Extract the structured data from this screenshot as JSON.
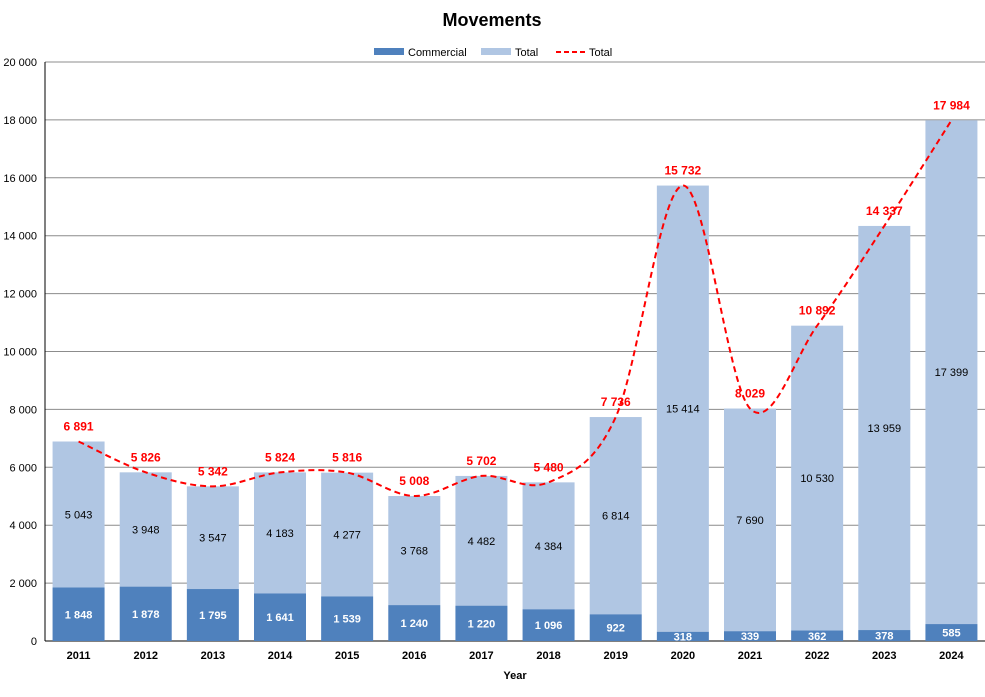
{
  "chart_data": {
    "type": "bar",
    "title": "Movements",
    "xlabel": "Year",
    "ylabel": "",
    "ylim": [
      0,
      20000
    ],
    "yticks": [
      "0",
      "2 000",
      "4 000",
      "6 000",
      "8 000",
      "10 000",
      "12 000",
      "14 000",
      "16 000",
      "18 000",
      "20 000"
    ],
    "grid": true,
    "legend_position": "top-center",
    "categories": [
      "2011",
      "2012",
      "2013",
      "2014",
      "2015",
      "2016",
      "2017",
      "2018",
      "2019",
      "2020",
      "2021",
      "2022",
      "2023",
      "2024"
    ],
    "series": [
      {
        "name": "Commercial",
        "kind": "bar",
        "color": "#4f81bd",
        "values": [
          1848,
          1878,
          1795,
          1641,
          1539,
          1240,
          1220,
          1096,
          922,
          318,
          339,
          362,
          378,
          585
        ],
        "labels": [
          "1 848",
          "1 878",
          "1 795",
          "1 641",
          "1 539",
          "1 240",
          "1 220",
          "1 096",
          "922",
          "318",
          "339",
          "362",
          "378",
          "585"
        ]
      },
      {
        "name": "Total",
        "kind": "bar",
        "color": "#b0c6e3",
        "values": [
          5043,
          3948,
          3547,
          4183,
          4277,
          3768,
          4482,
          4384,
          6814,
          15414,
          7690,
          10530,
          13959,
          17399
        ],
        "labels": [
          "5 043",
          "3 948",
          "3 547",
          "4 183",
          "4 277",
          "3 768",
          "4 482",
          "4 384",
          "6 814",
          "15 414",
          "7 690",
          "10 530",
          "13 959",
          "17 399"
        ]
      },
      {
        "name": "Total",
        "kind": "line",
        "style": "dashed-smooth",
        "color": "#ff0000",
        "values": [
          6891,
          5826,
          5342,
          5824,
          5816,
          5008,
          5702,
          5480,
          7736,
          15732,
          8029,
          10892,
          14337,
          17984
        ],
        "labels": [
          "6 891",
          "5 826",
          "5 342",
          "5 824",
          "5 816",
          "5 008",
          "5 702",
          "5 480",
          "7 736",
          "15 732",
          "8 029",
          "10 892",
          "14 337",
          "17 984"
        ]
      }
    ]
  }
}
